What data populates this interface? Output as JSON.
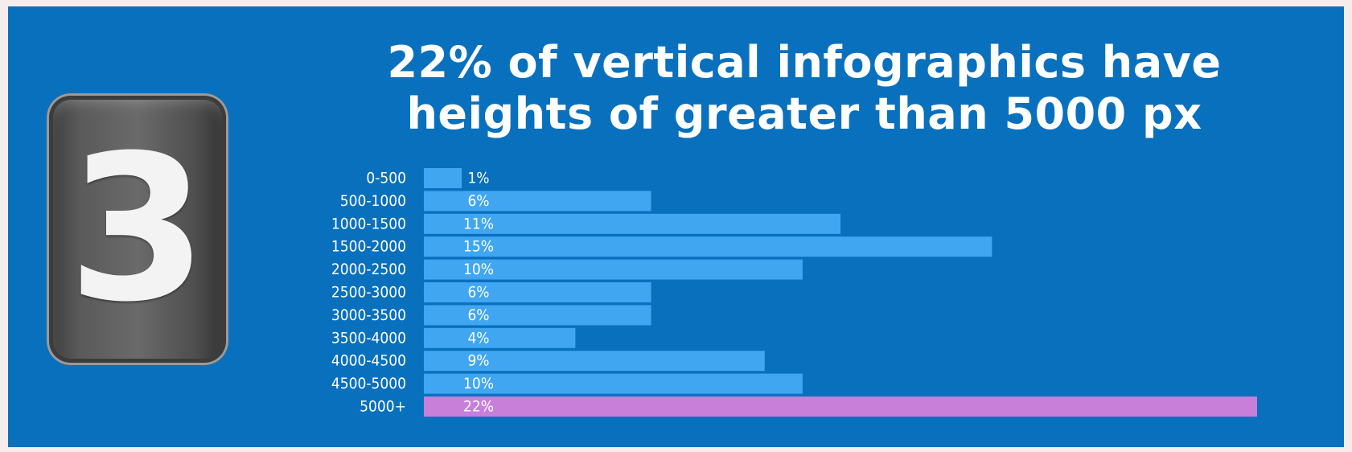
{
  "badge": {
    "number": "3"
  },
  "chart_data": {
    "type": "bar",
    "orientation": "horizontal",
    "title": "22% of vertical infographics have heights of greater than 5000 px",
    "title_lines": [
      "22% of vertical infographics have",
      "heights of greater than 5000 px"
    ],
    "categories": [
      "0-500",
      "500-1000",
      "1000-1500",
      "1500-2000",
      "2000-2500",
      "2500-3000",
      "3000-3500",
      "3500-4000",
      "4000-4500",
      "4500-5000",
      "5000+"
    ],
    "values": [
      1,
      6,
      11,
      15,
      10,
      6,
      6,
      4,
      9,
      10,
      22
    ],
    "value_labels": [
      "1%",
      "6%",
      "11%",
      "15%",
      "10%",
      "6%",
      "6%",
      "4%",
      "9%",
      "10%",
      "22%"
    ],
    "unit": "%",
    "xlim": [
      0,
      22
    ],
    "grid": false,
    "legend": "none",
    "colors": {
      "bar": "#40a6f2",
      "highlight": "#c77fd9",
      "background": "#0970be",
      "outer": "#f7ecec"
    },
    "highlight_index": 10
  }
}
